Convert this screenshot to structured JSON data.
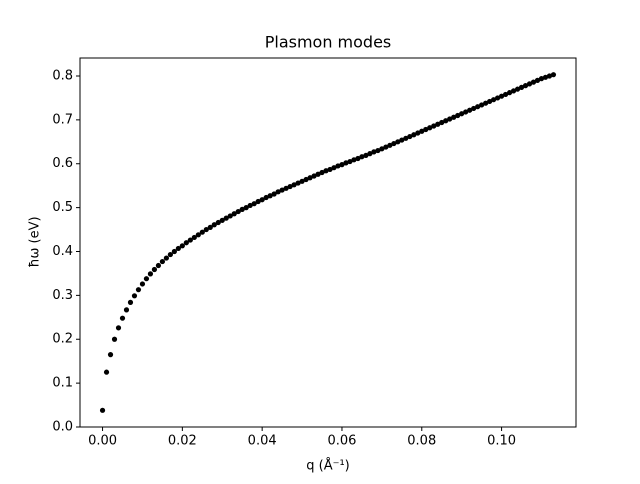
{
  "chart_data": {
    "type": "scatter",
    "title": "Plasmon modes",
    "x_label": "q (Å⁻¹)",
    "y_label": "ħω (eV)",
    "color": "#000000",
    "grid": false,
    "xlim": [
      -0.00565,
      0.11865
    ],
    "ylim": [
      0,
      0.841
    ],
    "xticks": [
      {
        "value": 0,
        "label": "0.00"
      },
      {
        "value": 0.02,
        "label": "0.02"
      },
      {
        "value": 0.04,
        "label": "0.04"
      },
      {
        "value": 0.06,
        "label": "0.06"
      },
      {
        "value": 0.08,
        "label": "0.08"
      },
      {
        "value": 0.1,
        "label": "0.10"
      }
    ],
    "yticks": [
      {
        "value": 0,
        "label": "0.0"
      },
      {
        "value": 0.1,
        "label": "0.1"
      },
      {
        "value": 0.2,
        "label": "0.2"
      },
      {
        "value": 0.3,
        "label": "0.3"
      },
      {
        "value": 0.4,
        "label": "0.4"
      },
      {
        "value": 0.5,
        "label": "0.5"
      },
      {
        "value": 0.6,
        "label": "0.6"
      },
      {
        "value": 0.7,
        "label": "0.7"
      },
      {
        "value": 0.8,
        "label": "0.8"
      }
    ],
    "x": [
      0,
      0.001,
      0.002,
      0.003,
      0.004,
      0.005,
      0.006,
      0.007,
      0.008,
      0.009,
      0.01,
      0.011,
      0.012,
      0.013,
      0.014,
      0.015,
      0.016,
      0.017,
      0.018,
      0.019,
      0.02,
      0.021,
      0.022,
      0.023,
      0.024,
      0.025,
      0.026,
      0.027,
      0.028,
      0.029,
      0.03,
      0.031,
      0.032,
      0.033,
      0.034,
      0.035,
      0.036,
      0.037,
      0.038,
      0.039,
      0.04,
      0.041,
      0.042,
      0.043,
      0.044,
      0.045,
      0.046,
      0.047,
      0.048,
      0.049,
      0.05,
      0.051,
      0.052,
      0.053,
      0.054,
      0.055,
      0.056,
      0.057,
      0.058,
      0.059,
      0.06,
      0.061,
      0.062,
      0.063,
      0.064,
      0.065,
      0.066,
      0.067,
      0.068,
      0.069,
      0.07,
      0.071,
      0.072,
      0.073,
      0.074,
      0.075,
      0.076,
      0.077,
      0.078,
      0.079,
      0.08,
      0.081,
      0.082,
      0.083,
      0.084,
      0.085,
      0.086,
      0.087,
      0.088,
      0.089,
      0.09,
      0.091,
      0.092,
      0.093,
      0.094,
      0.095,
      0.096,
      0.097,
      0.098,
      0.099,
      0.1,
      0.101,
      0.102,
      0.103,
      0.104,
      0.105,
      0.106,
      0.107,
      0.108,
      0.109,
      0.11,
      0.111,
      0.112,
      0.113
    ],
    "values": [
      0.038,
      0.125,
      0.165,
      0.2,
      0.226,
      0.248,
      0.267,
      0.284,
      0.299,
      0.313,
      0.326,
      0.338,
      0.349,
      0.359,
      0.368,
      0.377,
      0.385,
      0.393,
      0.4,
      0.407,
      0.413,
      0.42,
      0.426,
      0.432,
      0.438,
      0.444,
      0.45,
      0.455,
      0.461,
      0.466,
      0.471,
      0.476,
      0.481,
      0.486,
      0.491,
      0.496,
      0.5,
      0.505,
      0.509,
      0.514,
      0.518,
      0.523,
      0.527,
      0.531,
      0.536,
      0.54,
      0.544,
      0.548,
      0.552,
      0.556,
      0.56,
      0.564,
      0.568,
      0.572,
      0.576,
      0.58,
      0.584,
      0.587,
      0.591,
      0.595,
      0.598,
      0.602,
      0.605,
      0.609,
      0.612,
      0.616,
      0.619,
      0.623,
      0.627,
      0.63,
      0.634,
      0.638,
      0.642,
      0.646,
      0.65,
      0.654,
      0.658,
      0.662,
      0.666,
      0.67,
      0.674,
      0.678,
      0.682,
      0.686,
      0.69,
      0.694,
      0.698,
      0.702,
      0.706,
      0.71,
      0.714,
      0.718,
      0.722,
      0.726,
      0.73,
      0.734,
      0.738,
      0.742,
      0.746,
      0.75,
      0.754,
      0.758,
      0.762,
      0.766,
      0.77,
      0.774,
      0.778,
      0.782,
      0.786,
      0.79,
      0.794,
      0.797,
      0.8,
      0.803
    ]
  }
}
